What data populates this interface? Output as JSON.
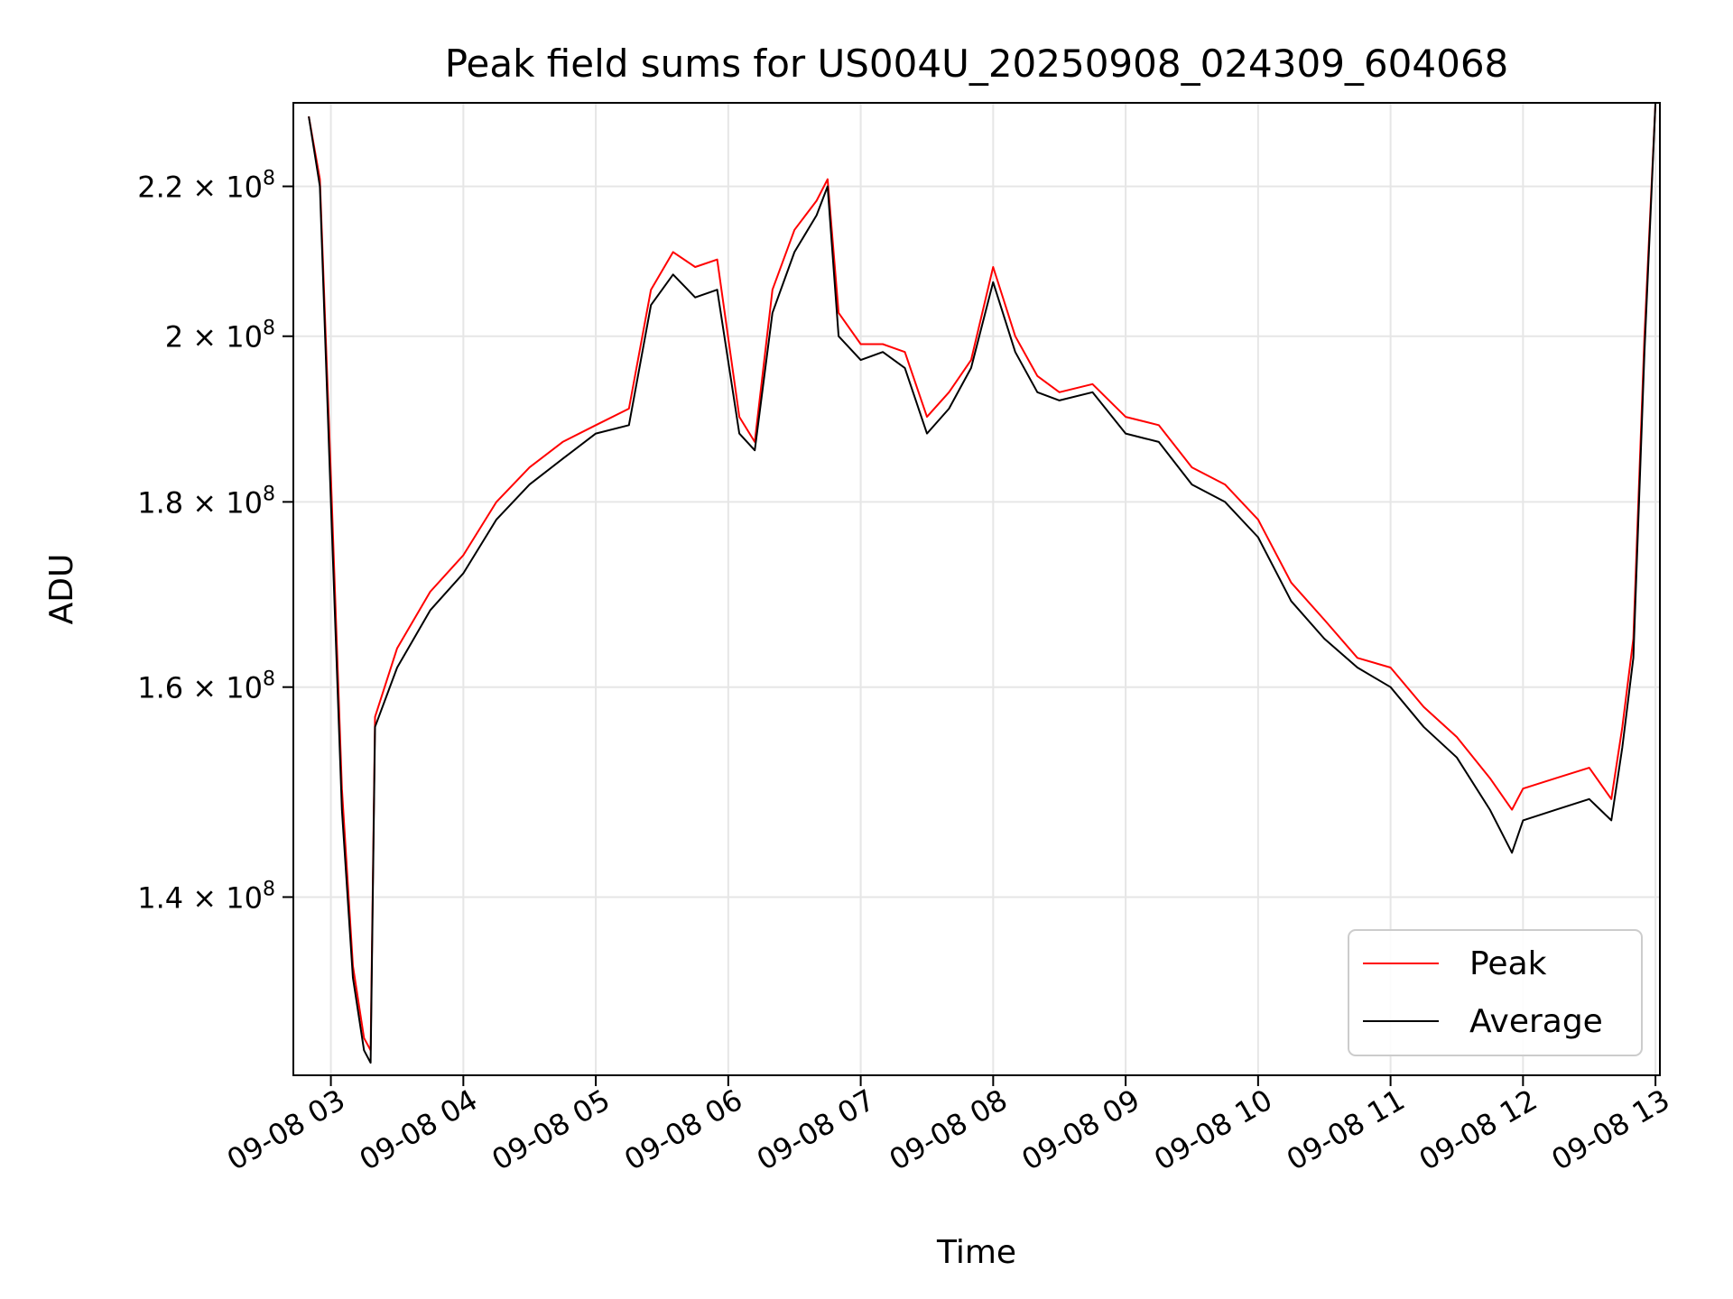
{
  "chart_data": {
    "type": "line",
    "title": "Peak field sums for US004U_20250908_024309_604068",
    "xlabel": "Time",
    "ylabel": "ADU",
    "y_scale": "log",
    "grid": true,
    "legend_position": "bottom-right",
    "xlim": [
      "2025-09-08 02:43",
      "2025-09-08 13:02"
    ],
    "ylim": [
      125000000,
      232000000
    ],
    "x_ticks": [
      {
        "value": "2025-09-08 03:00",
        "label": "09-08 03"
      },
      {
        "value": "2025-09-08 04:00",
        "label": "09-08 04"
      },
      {
        "value": "2025-09-08 05:00",
        "label": "09-08 05"
      },
      {
        "value": "2025-09-08 06:00",
        "label": "09-08 06"
      },
      {
        "value": "2025-09-08 07:00",
        "label": "09-08 07"
      },
      {
        "value": "2025-09-08 08:00",
        "label": "09-08 08"
      },
      {
        "value": "2025-09-08 09:00",
        "label": "09-08 09"
      },
      {
        "value": "2025-09-08 10:00",
        "label": "09-08 10"
      },
      {
        "value": "2025-09-08 11:00",
        "label": "09-08 11"
      },
      {
        "value": "2025-09-08 12:00",
        "label": "09-08 12"
      },
      {
        "value": "2025-09-08 13:00",
        "label": "09-08 13"
      }
    ],
    "y_ticks": [
      {
        "value": 140000000,
        "mant": "1.4",
        "exp": "8"
      },
      {
        "value": 160000000,
        "mant": "1.6",
        "exp": "8"
      },
      {
        "value": 180000000,
        "mant": "1.8",
        "exp": "8"
      },
      {
        "value": 200000000,
        "mant": "2",
        "exp": "8"
      },
      {
        "value": 220000000,
        "mant": "2.2",
        "exp": "8"
      }
    ],
    "series": [
      {
        "name": "Peak",
        "color": "#ff0000",
        "x": [
          "2025-09-08 02:50",
          "2025-09-08 02:55",
          "2025-09-08 03:00",
          "2025-09-08 03:05",
          "2025-09-08 03:10",
          "2025-09-08 03:15",
          "2025-09-08 03:18",
          "2025-09-08 03:20",
          "2025-09-08 03:30",
          "2025-09-08 03:45",
          "2025-09-08 04:00",
          "2025-09-08 04:15",
          "2025-09-08 04:30",
          "2025-09-08 04:45",
          "2025-09-08 05:00",
          "2025-09-08 05:15",
          "2025-09-08 05:25",
          "2025-09-08 05:35",
          "2025-09-08 05:45",
          "2025-09-08 05:55",
          "2025-09-08 06:05",
          "2025-09-08 06:12",
          "2025-09-08 06:20",
          "2025-09-08 06:30",
          "2025-09-08 06:40",
          "2025-09-08 06:45",
          "2025-09-08 06:50",
          "2025-09-08 07:00",
          "2025-09-08 07:10",
          "2025-09-08 07:20",
          "2025-09-08 07:30",
          "2025-09-08 07:40",
          "2025-09-08 07:50",
          "2025-09-08 08:00",
          "2025-09-08 08:10",
          "2025-09-08 08:20",
          "2025-09-08 08:30",
          "2025-09-08 08:45",
          "2025-09-08 09:00",
          "2025-09-08 09:15",
          "2025-09-08 09:30",
          "2025-09-08 09:45",
          "2025-09-08 10:00",
          "2025-09-08 10:15",
          "2025-09-08 10:30",
          "2025-09-08 10:45",
          "2025-09-08 11:00",
          "2025-09-08 11:15",
          "2025-09-08 11:30",
          "2025-09-08 11:45",
          "2025-09-08 11:55",
          "2025-09-08 12:00",
          "2025-09-08 12:15",
          "2025-09-08 12:30",
          "2025-09-08 12:40",
          "2025-09-08 12:45",
          "2025-09-08 12:50",
          "2025-09-08 12:55",
          "2025-09-08 13:00"
        ],
        "y": [
          230000000,
          221000000,
          183000000,
          150000000,
          134000000,
          128000000,
          127000000,
          157000000,
          164000000,
          170000000,
          174000000,
          180000000,
          184000000,
          187000000,
          189000000,
          191000000,
          206000000,
          211000000,
          209000000,
          210000000,
          190000000,
          187000000,
          206000000,
          214000000,
          218000000,
          221000000,
          203000000,
          199000000,
          199000000,
          198000000,
          190000000,
          193000000,
          197000000,
          209000000,
          200000000,
          195000000,
          193000000,
          194000000,
          190000000,
          189000000,
          184000000,
          182000000,
          178000000,
          171000000,
          167000000,
          163000000,
          162000000,
          158000000,
          155000000,
          151000000,
          148000000,
          150000000,
          151000000,
          152000000,
          149000000,
          156000000,
          165000000,
          200000000,
          232000000
        ]
      },
      {
        "name": "Average",
        "color": "#000000",
        "x": [
          "2025-09-08 02:50",
          "2025-09-08 02:55",
          "2025-09-08 03:00",
          "2025-09-08 03:05",
          "2025-09-08 03:10",
          "2025-09-08 03:15",
          "2025-09-08 03:18",
          "2025-09-08 03:20",
          "2025-09-08 03:30",
          "2025-09-08 03:45",
          "2025-09-08 04:00",
          "2025-09-08 04:15",
          "2025-09-08 04:30",
          "2025-09-08 04:45",
          "2025-09-08 05:00",
          "2025-09-08 05:15",
          "2025-09-08 05:25",
          "2025-09-08 05:35",
          "2025-09-08 05:45",
          "2025-09-08 05:55",
          "2025-09-08 06:05",
          "2025-09-08 06:12",
          "2025-09-08 06:20",
          "2025-09-08 06:30",
          "2025-09-08 06:40",
          "2025-09-08 06:45",
          "2025-09-08 06:50",
          "2025-09-08 07:00",
          "2025-09-08 07:10",
          "2025-09-08 07:20",
          "2025-09-08 07:30",
          "2025-09-08 07:40",
          "2025-09-08 07:50",
          "2025-09-08 08:00",
          "2025-09-08 08:10",
          "2025-09-08 08:20",
          "2025-09-08 08:30",
          "2025-09-08 08:45",
          "2025-09-08 09:00",
          "2025-09-08 09:15",
          "2025-09-08 09:30",
          "2025-09-08 09:45",
          "2025-09-08 10:00",
          "2025-09-08 10:15",
          "2025-09-08 10:30",
          "2025-09-08 10:45",
          "2025-09-08 11:00",
          "2025-09-08 11:15",
          "2025-09-08 11:30",
          "2025-09-08 11:45",
          "2025-09-08 11:55",
          "2025-09-08 12:00",
          "2025-09-08 12:15",
          "2025-09-08 12:30",
          "2025-09-08 12:40",
          "2025-09-08 12:45",
          "2025-09-08 12:50",
          "2025-09-08 12:55",
          "2025-09-08 13:00"
        ],
        "y": [
          230000000,
          220000000,
          180000000,
          148000000,
          133000000,
          127000000,
          126000000,
          156000000,
          162000000,
          168000000,
          172000000,
          178000000,
          182000000,
          185000000,
          188000000,
          189000000,
          204000000,
          208000000,
          205000000,
          206000000,
          188000000,
          186000000,
          203000000,
          211000000,
          216000000,
          220000000,
          200000000,
          197000000,
          198000000,
          196000000,
          188000000,
          191000000,
          196000000,
          207000000,
          198000000,
          193000000,
          192000000,
          193000000,
          188000000,
          187000000,
          182000000,
          180000000,
          176000000,
          169000000,
          165000000,
          162000000,
          160000000,
          156000000,
          153000000,
          148000000,
          144000000,
          147000000,
          148000000,
          149000000,
          147000000,
          154000000,
          163000000,
          198000000,
          232000000
        ]
      }
    ]
  }
}
